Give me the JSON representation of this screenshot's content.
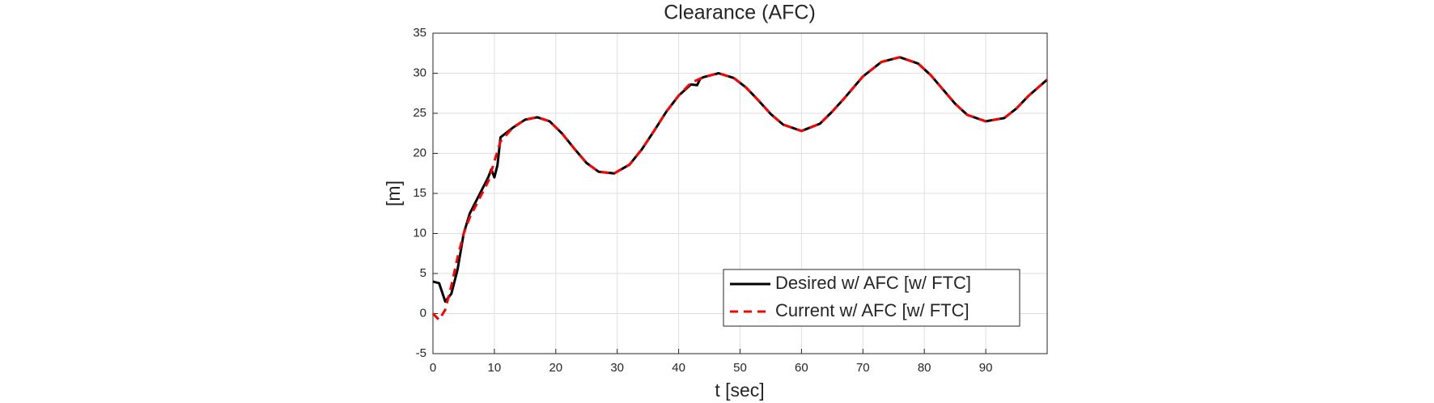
{
  "chart_data": {
    "type": "line",
    "title": "Clearance (AFC)",
    "xlabel": "t [sec]",
    "ylabel": "[m]",
    "xlim": [
      0,
      100
    ],
    "xticks": [
      0,
      10,
      20,
      30,
      40,
      50,
      60,
      70,
      80,
      90
    ],
    "ylim": [
      -5,
      35
    ],
    "yticks": [
      -5,
      0,
      5,
      10,
      15,
      20,
      25,
      30,
      35
    ],
    "grid": true,
    "legend": "lower right",
    "series": [
      {
        "name": "Desired w/ AFC [w/ FTC]",
        "color": "#000000",
        "dash": false,
        "x": [
          0,
          1,
          2,
          3,
          4,
          5,
          6,
          7,
          8,
          9,
          9.5,
          10,
          10.5,
          11,
          13,
          15,
          17,
          19,
          21,
          23,
          25,
          27,
          29.5,
          32,
          34,
          36,
          38,
          40,
          42,
          43,
          43.5,
          44,
          46.5,
          49,
          51,
          53,
          55,
          57,
          60,
          63,
          65,
          67,
          70,
          73,
          76,
          79,
          81,
          83,
          85,
          87,
          90,
          93,
          95,
          97,
          100
        ],
        "values": [
          4,
          3.8,
          1.5,
          2.5,
          5.5,
          10,
          12.5,
          14,
          15.5,
          17,
          18,
          17,
          18.5,
          22,
          23.2,
          24.2,
          24.5,
          24,
          22.5,
          20.6,
          18.8,
          17.7,
          17.5,
          18.6,
          20.5,
          22.8,
          25.2,
          27.2,
          28.6,
          28.5,
          29.3,
          29.5,
          30,
          29.4,
          28.2,
          26.6,
          24.9,
          23.6,
          22.8,
          23.7,
          25.2,
          26.9,
          29.6,
          31.4,
          32,
          31.2,
          29.8,
          28,
          26.2,
          24.8,
          24,
          24.4,
          25.6,
          27.2,
          29.2
        ]
      },
      {
        "name": "Current w/ AFC [w/ FTC]",
        "color": "#ff0000",
        "dash": true,
        "x": [
          0,
          1,
          2,
          3,
          4,
          5,
          6,
          7,
          8,
          9,
          10,
          11,
          13,
          15,
          17,
          19,
          21,
          23,
          25,
          27,
          29.5,
          32,
          34,
          36,
          38,
          40,
          42,
          44,
          46.5,
          49,
          51,
          53,
          55,
          57,
          60,
          63,
          65,
          67,
          70,
          73,
          76,
          79,
          81,
          83,
          85,
          87,
          90,
          93,
          95,
          97,
          100
        ],
        "values": [
          0,
          -0.8,
          0.5,
          3.5,
          7,
          10,
          12,
          13.5,
          15,
          16.5,
          19,
          21.5,
          23.2,
          24.2,
          24.5,
          24,
          22.5,
          20.6,
          18.8,
          17.7,
          17.5,
          18.6,
          20.5,
          22.8,
          25.2,
          27.2,
          28.8,
          29.5,
          30,
          29.4,
          28.2,
          26.6,
          24.9,
          23.6,
          22.8,
          23.7,
          25.2,
          26.9,
          29.6,
          31.4,
          32,
          31.2,
          29.8,
          28,
          26.2,
          24.8,
          24,
          24.4,
          25.6,
          27.2,
          29.2
        ]
      }
    ]
  }
}
